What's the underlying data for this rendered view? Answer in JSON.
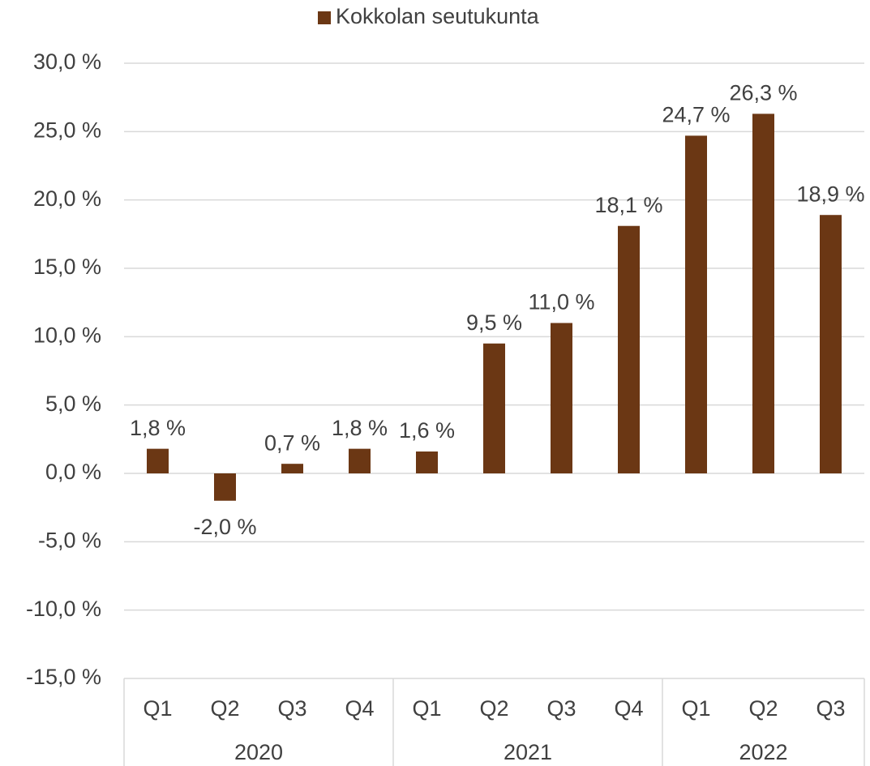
{
  "chart_data": {
    "type": "bar",
    "legend": "top",
    "grid": true,
    "series": [
      {
        "name": "Kokkolan seutukunta",
        "color": "#6b3714",
        "values": [
          1.8,
          -2.0,
          0.7,
          1.8,
          1.6,
          9.5,
          11.0,
          18.1,
          24.7,
          26.3,
          18.9
        ],
        "value_labels": [
          "1,8 %",
          "-2,0 %",
          "0,7 %",
          "1,8 %",
          "1,6 %",
          "9,5 %",
          "11,0 %",
          "18,1 %",
          "24,7 %",
          "26,3 %",
          "18,9 %"
        ]
      }
    ],
    "groups": [
      {
        "name": "2020",
        "categories": [
          "Q1",
          "Q2",
          "Q3",
          "Q4"
        ]
      },
      {
        "name": "2021",
        "categories": [
          "Q1",
          "Q2",
          "Q3",
          "Q4"
        ]
      },
      {
        "name": "2022",
        "categories": [
          "Q1",
          "Q2",
          "Q3"
        ]
      }
    ],
    "ylim": [
      -15,
      30
    ],
    "yticks": [
      {
        "value": -15,
        "label": "-15,0 %"
      },
      {
        "value": -10,
        "label": "-10,0 %"
      },
      {
        "value": -5,
        "label": "-5,0 %"
      },
      {
        "value": 0,
        "label": "0,0 %"
      },
      {
        "value": 5,
        "label": "5,0 %"
      },
      {
        "value": 10,
        "label": "10,0 %"
      },
      {
        "value": 15,
        "label": "15,0 %"
      },
      {
        "value": 20,
        "label": "20,0 %"
      },
      {
        "value": 25,
        "label": "25,0 %"
      },
      {
        "value": 30,
        "label": "30,0 %"
      }
    ]
  }
}
